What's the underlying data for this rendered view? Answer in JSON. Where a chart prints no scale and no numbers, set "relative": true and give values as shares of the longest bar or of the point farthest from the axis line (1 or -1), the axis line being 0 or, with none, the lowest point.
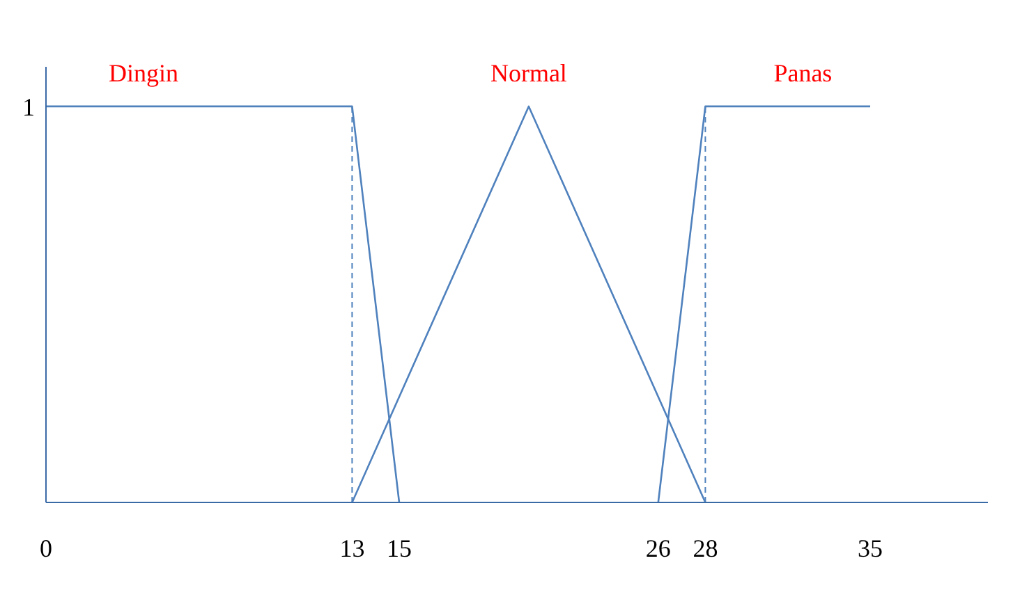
{
  "chart_data": {
    "type": "line",
    "xlim": [
      0,
      40
    ],
    "xticks": [
      0,
      13,
      15,
      26,
      28,
      35
    ],
    "relative": true,
    "annotations": [
      "1"
    ],
    "grid": false,
    "marker": "none",
    "line_style": "solid",
    "series": [
      {
        "name": "Dingin",
        "color": "#4f81bd",
        "x": [
          0,
          13,
          15
        ],
        "values": [
          1,
          1,
          0
        ]
      },
      {
        "name": "Normal",
        "color": "#4f81bd",
        "x": [
          13,
          20.5,
          28
        ],
        "values": [
          0,
          1,
          0
        ]
      },
      {
        "name": "Panas",
        "color": "#4f81bd",
        "x": [
          26,
          28,
          35
        ],
        "values": [
          0,
          1,
          1
        ]
      }
    ],
    "ref_lines": [
      {
        "axis": "x",
        "value": 13,
        "color": "#4f81bd",
        "line_style": "dashed"
      },
      {
        "axis": "x",
        "value": 28,
        "color": "#4f81bd",
        "line_style": "dashed"
      }
    ]
  }
}
